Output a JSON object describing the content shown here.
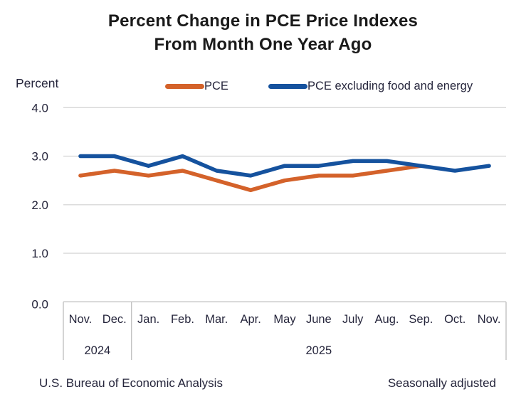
{
  "title": {
    "line1": "Percent Change in PCE Price Indexes",
    "line2": "From Month One Year Ago"
  },
  "y_axis_label": "Percent",
  "legend": [
    {
      "label": "PCE",
      "color": "#d4622a"
    },
    {
      "label": "PCE excluding food and energy",
      "color": "#15529e"
    }
  ],
  "footer": {
    "left": "U.S. Bureau of Economic Analysis",
    "right": "Seasonally adjusted"
  },
  "colors": {
    "pce_line": "#d4622a",
    "core_line": "#15529e",
    "gridline": "#d8d8d8",
    "axis_box": "#c2c2c2",
    "text_dark": "#26263c",
    "title_text": "#1a1a1a"
  },
  "chart_data": {
    "type": "line",
    "title": "Percent Change in PCE Price Indexes From Month One Year Ago",
    "ylabel": "Percent",
    "ylim": [
      0.0,
      4.0
    ],
    "y_ticks": [
      4.0,
      3.0,
      2.0,
      1.0,
      0.0
    ],
    "grid": true,
    "legend_position": "top",
    "note": "Seasonally adjusted",
    "source": "U.S. Bureau of Economic Analysis",
    "categories": [
      "Nov.",
      "Dec.",
      "Jan.",
      "Feb.",
      "Mar.",
      "Apr.",
      "May",
      "June",
      "July",
      "Aug.",
      "Sep.",
      "Oct.",
      "Nov."
    ],
    "year_groups": [
      {
        "label": "2024",
        "start": 0,
        "end": 1
      },
      {
        "label": "2025",
        "start": 2,
        "end": 12
      }
    ],
    "series": [
      {
        "name": "PCE",
        "color": "#d4622a",
        "values": [
          2.6,
          2.7,
          2.6,
          2.7,
          2.5,
          2.3,
          2.5,
          2.6,
          2.6,
          2.7,
          2.8,
          null,
          null
        ]
      },
      {
        "name": "PCE excluding food and energy",
        "color": "#15529e",
        "values": [
          3.0,
          3.0,
          2.8,
          3.0,
          2.7,
          2.6,
          2.8,
          2.8,
          2.9,
          2.9,
          2.8,
          2.7,
          2.8
        ]
      }
    ]
  }
}
